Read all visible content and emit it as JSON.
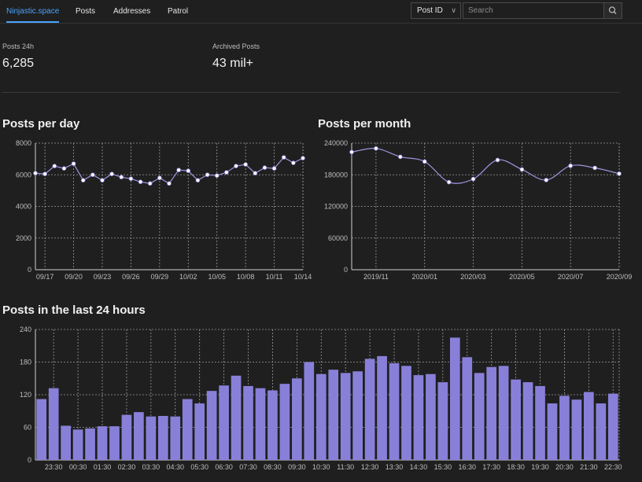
{
  "nav": {
    "brand": "Ninjastic.space",
    "items": [
      "Posts",
      "Addresses",
      "Patrol"
    ]
  },
  "search": {
    "type_selected": "Post ID",
    "placeholder": "Search"
  },
  "stats": [
    {
      "label": "Posts 24h",
      "value": "6,285"
    },
    {
      "label": "Archived Posts",
      "value": "43 mil+"
    }
  ],
  "colors": {
    "accent": "#4aa3ff",
    "bar": "#8880d8",
    "line": "#9d97e0",
    "grid": "#9a9a9a"
  },
  "chart_data": [
    {
      "type": "line",
      "title": "Posts per day",
      "x": [
        "09/16",
        "09/17",
        "09/18",
        "09/19",
        "09/20",
        "09/21",
        "09/22",
        "09/23",
        "09/24",
        "09/25",
        "09/26",
        "09/27",
        "09/28",
        "09/29",
        "09/30",
        "10/01",
        "10/02",
        "10/03",
        "10/04",
        "10/05",
        "10/06",
        "10/07",
        "10/08",
        "10/09",
        "10/10",
        "10/11",
        "10/12",
        "10/13",
        "10/14"
      ],
      "values": [
        6100,
        6050,
        6550,
        6400,
        6700,
        5650,
        6000,
        5650,
        6050,
        5850,
        5750,
        5550,
        5450,
        5800,
        5450,
        6300,
        6250,
        5650,
        6000,
        5950,
        6150,
        6550,
        6650,
        6100,
        6450,
        6400,
        7100,
        6750,
        7050
      ],
      "xticks": [
        "09/17",
        "09/20",
        "09/23",
        "09/26",
        "09/29",
        "10/02",
        "10/05",
        "10/08",
        "10/11",
        "10/14"
      ],
      "yticks": [
        0,
        2000,
        4000,
        6000,
        8000
      ],
      "ylim": [
        0,
        8000
      ],
      "grid": true
    },
    {
      "type": "line",
      "title": "Posts per month",
      "x": [
        "2019/10",
        "2019/11",
        "2019/12",
        "2020/01",
        "2020/02",
        "2020/03",
        "2020/04",
        "2020/05",
        "2020/06",
        "2020/07",
        "2020/08",
        "2020/09"
      ],
      "values": [
        223000,
        230000,
        214000,
        205000,
        166000,
        172000,
        208000,
        190000,
        170000,
        197000,
        193000,
        182000
      ],
      "xticks": [
        "2019/11",
        "2020/01",
        "2020/03",
        "2020/05",
        "2020/07",
        "2020/09"
      ],
      "yticks": [
        0,
        60000,
        120000,
        180000,
        240000
      ],
      "ylim": [
        0,
        240000
      ],
      "grid": true
    },
    {
      "type": "bar",
      "title": "Posts in the last 24 hours",
      "categories": [
        "23:00",
        "23:30",
        "00:00",
        "00:30",
        "01:00",
        "01:30",
        "02:00",
        "02:30",
        "03:00",
        "03:30",
        "04:00",
        "04:30",
        "05:00",
        "05:30",
        "06:00",
        "06:30",
        "07:00",
        "07:30",
        "08:00",
        "08:30",
        "09:00",
        "09:30",
        "10:00",
        "10:30",
        "11:00",
        "11:30",
        "12:00",
        "12:30",
        "13:00",
        "13:30",
        "14:00",
        "14:30",
        "15:00",
        "15:30",
        "16:00",
        "16:30",
        "17:00",
        "17:30",
        "18:00",
        "18:30",
        "19:00",
        "19:30",
        "20:00",
        "20:30",
        "21:00",
        "21:30",
        "22:00",
        "22:30"
      ],
      "values": [
        112,
        132,
        63,
        56,
        58,
        62,
        62,
        83,
        88,
        80,
        81,
        80,
        112,
        104,
        127,
        137,
        155,
        136,
        132,
        128,
        140,
        150,
        180,
        158,
        166,
        160,
        163,
        186,
        191,
        178,
        173,
        156,
        158,
        143,
        225,
        189,
        160,
        171,
        173,
        148,
        143,
        136,
        104,
        118,
        111,
        125,
        104,
        122
      ],
      "xticks": [
        "23:30",
        "00:30",
        "01:30",
        "02:30",
        "03:30",
        "04:30",
        "05:30",
        "06:30",
        "07:30",
        "08:30",
        "09:30",
        "10:30",
        "11:30",
        "12:30",
        "13:30",
        "14:30",
        "15:30",
        "16:30",
        "17:30",
        "18:30",
        "19:30",
        "20:30",
        "21:30",
        "22:30"
      ],
      "yticks": [
        0,
        60,
        120,
        180,
        240
      ],
      "ylim": [
        0,
        240
      ],
      "grid": true
    }
  ]
}
